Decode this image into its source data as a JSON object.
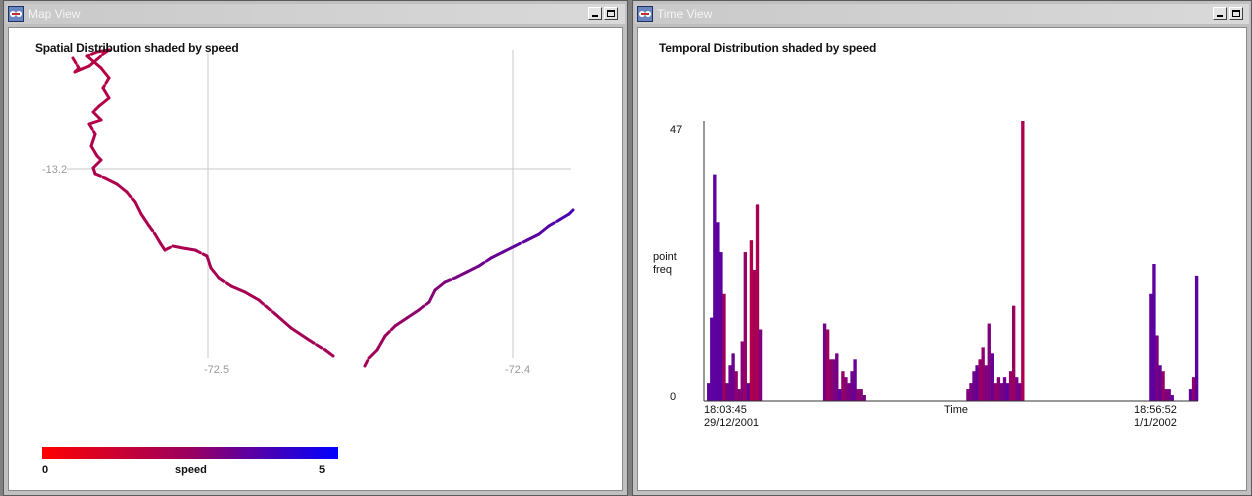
{
  "map_window": {
    "title": "Map View",
    "heading": "Spatial Distribution shaded by speed",
    "y_tick": "-13.2",
    "x_ticks": [
      "-72.5",
      "-72.4"
    ],
    "legend": {
      "min": "0",
      "label": "speed",
      "max": "5"
    }
  },
  "time_window": {
    "title": "Time View",
    "heading": "Temporal Distribution shaded by speed",
    "y_max": "47",
    "y_min": "0",
    "y_label_line1": "point",
    "y_label_line2": "freq",
    "x_label": "Time",
    "x_start_time": "18:03:45",
    "x_start_date": "29/12/2001",
    "x_end_time": "18:56:52",
    "x_end_date": "1/1/2002"
  },
  "colors": {
    "slow": "#ff0000",
    "fast": "#0000ff",
    "grid": "#c8c8c8"
  },
  "icons": [
    "app-icon",
    "minimize-icon",
    "maximize-icon"
  ],
  "chart_data": [
    {
      "type": "scatter",
      "title": "Spatial Distribution shaded by speed",
      "xlabel": "",
      "ylabel": "",
      "color_scale": {
        "label": "speed",
        "min": 0,
        "max": 5
      },
      "x_ticks": [
        -72.5,
        -72.4
      ],
      "y_ticks": [
        -13.2
      ],
      "grid": true
    },
    {
      "type": "bar",
      "title": "Temporal Distribution shaded by speed",
      "xlabel": "Time",
      "ylabel": "point freq",
      "ylim": [
        0,
        47
      ],
      "x_range": [
        "18:03:45 29/12/2001",
        "18:56:52 1/1/2002"
      ],
      "values": [
        0,
        3,
        14,
        38,
        30,
        25,
        18,
        3,
        6,
        8,
        5,
        2,
        10,
        25,
        3,
        27,
        22,
        33,
        12,
        0,
        0,
        0,
        0,
        0,
        0,
        0,
        0,
        0,
        0,
        0,
        0,
        0,
        0,
        0,
        0,
        0,
        0,
        0,
        0,
        13,
        12,
        7,
        7,
        8,
        2,
        5,
        4,
        3,
        5,
        7,
        2,
        2,
        1,
        0,
        0,
        0,
        0,
        0,
        0,
        0,
        0,
        0,
        0,
        0,
        0,
        0,
        0,
        0,
        0,
        0,
        0,
        0,
        0,
        0,
        0,
        0,
        0,
        0,
        0,
        0,
        0,
        0,
        0,
        0,
        0,
        0,
        2,
        3,
        5,
        6,
        7,
        9,
        6,
        13,
        8,
        3,
        4,
        3,
        4,
        3,
        5,
        16,
        4,
        3,
        47,
        0,
        0,
        0,
        0,
        0,
        0,
        0,
        0,
        0,
        0,
        0,
        0,
        0,
        0,
        0,
        0,
        0,
        0,
        0,
        0,
        0,
        0,
        0,
        0,
        0,
        0,
        0,
        0,
        0,
        0,
        0,
        0,
        0,
        0,
        0,
        0,
        0,
        0,
        0,
        0,
        0,
        18,
        23,
        11,
        6,
        5,
        2,
        2,
        1,
        0,
        0,
        0,
        0,
        0,
        2,
        4,
        21
      ]
    }
  ]
}
